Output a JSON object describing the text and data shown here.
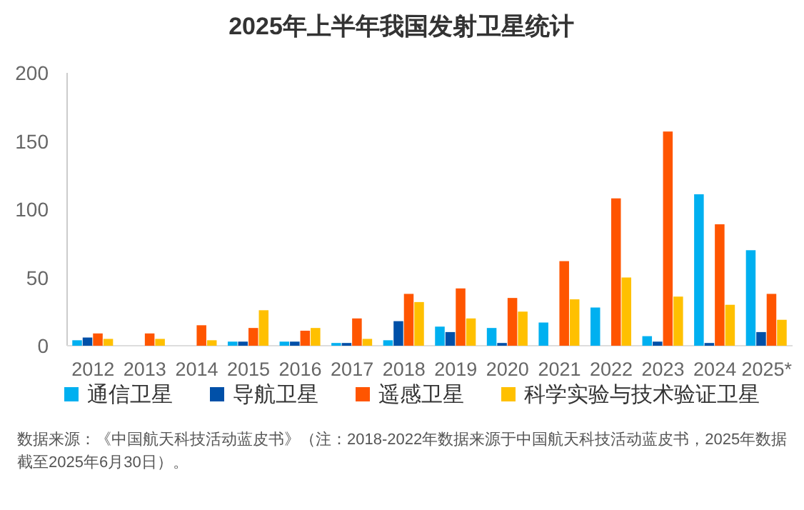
{
  "chart_data": {
    "type": "bar",
    "title": "2025年上半年我国发射卫星统计",
    "categories": [
      "2012",
      "2013",
      "2014",
      "2015",
      "2016",
      "2017",
      "2018",
      "2019",
      "2020",
      "2021",
      "2022",
      "2023",
      "2024",
      "2025*"
    ],
    "series": [
      {
        "name": "通信卫星",
        "color": "#00b0f0",
        "values": [
          4,
          0,
          0,
          3,
          3,
          2,
          4,
          14,
          13,
          17,
          28,
          7,
          111,
          70
        ]
      },
      {
        "name": "导航卫星",
        "color": "#0050a8",
        "values": [
          6,
          0,
          0,
          3,
          3,
          2,
          18,
          10,
          2,
          0,
          0,
          3,
          2,
          10
        ]
      },
      {
        "name": "遥感卫星",
        "color": "#ff5500",
        "values": [
          9,
          9,
          15,
          13,
          11,
          20,
          38,
          42,
          35,
          62,
          108,
          157,
          89,
          38
        ]
      },
      {
        "name": "科学实验与技术验证卫星",
        "color": "#ffc000",
        "values": [
          5,
          5,
          4,
          26,
          13,
          5,
          32,
          20,
          25,
          34,
          50,
          36,
          30,
          19
        ]
      }
    ],
    "ylim": [
      0,
      200
    ],
    "yticks": [
      0,
      50,
      100,
      150,
      200
    ],
    "grid": false,
    "legend": "bottom",
    "annotations": [
      "数据来源：《中国航天科技活动蓝皮书》（注：2018-2022年数据来源于中国航天科技活动蓝皮书，2025年数据截至2025年6月30日）。"
    ]
  }
}
